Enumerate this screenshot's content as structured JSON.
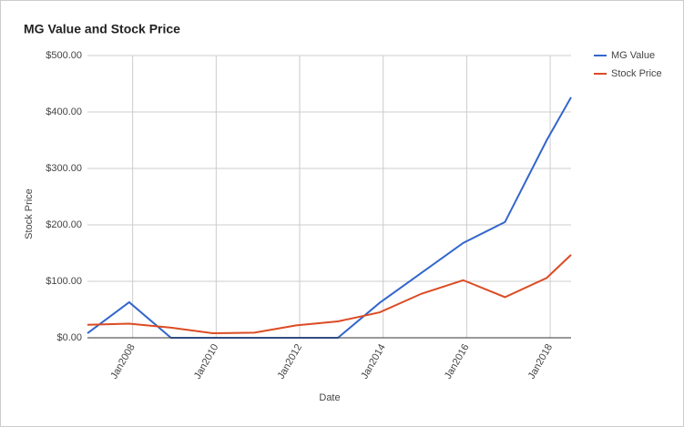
{
  "chart_data": {
    "type": "line",
    "title": "MG Value and Stock Price",
    "x_label": "Date",
    "y_label": "Stock Price",
    "x": [
      "2006-12",
      "2007-12",
      "2008-12",
      "2009-12",
      "2010-12",
      "2011-12",
      "2012-12",
      "2013-12",
      "2014-12",
      "2015-12",
      "2016-12",
      "2017-12",
      "2018-07"
    ],
    "series": [
      {
        "name": "MG Value",
        "color": "#3366cc",
        "values": [
          8,
          63,
          0,
          0,
          0,
          0,
          0,
          62,
          115,
          168,
          205,
          350,
          426
        ]
      },
      {
        "name": "Stock Price",
        "color": "#dc4b24",
        "values": [
          23,
          25,
          18,
          8,
          9,
          22,
          29,
          45,
          78,
          102,
          72,
          106,
          147
        ]
      }
    ],
    "xlim": [
      "2006-12",
      "2018-07"
    ],
    "xticks": [
      {
        "value": "2008-01",
        "label": "Jan2008"
      },
      {
        "value": "2010-01",
        "label": "Jan2010"
      },
      {
        "value": "2012-01",
        "label": "Jan2012"
      },
      {
        "value": "2014-01",
        "label": "Jan2014"
      },
      {
        "value": "2016-01",
        "label": "Jan2016"
      },
      {
        "value": "2018-01",
        "label": "Jan2018"
      }
    ],
    "ylim": [
      0,
      500
    ],
    "yticks": [
      {
        "value": 0,
        "label": "$0.00"
      },
      {
        "value": 100,
        "label": "$100.00"
      },
      {
        "value": 200,
        "label": "$200.00"
      },
      {
        "value": 300,
        "label": "$300.00"
      },
      {
        "value": 400,
        "label": "$400.00"
      },
      {
        "value": 500,
        "label": "$500.00"
      }
    ],
    "grid": true,
    "legend": "right"
  }
}
